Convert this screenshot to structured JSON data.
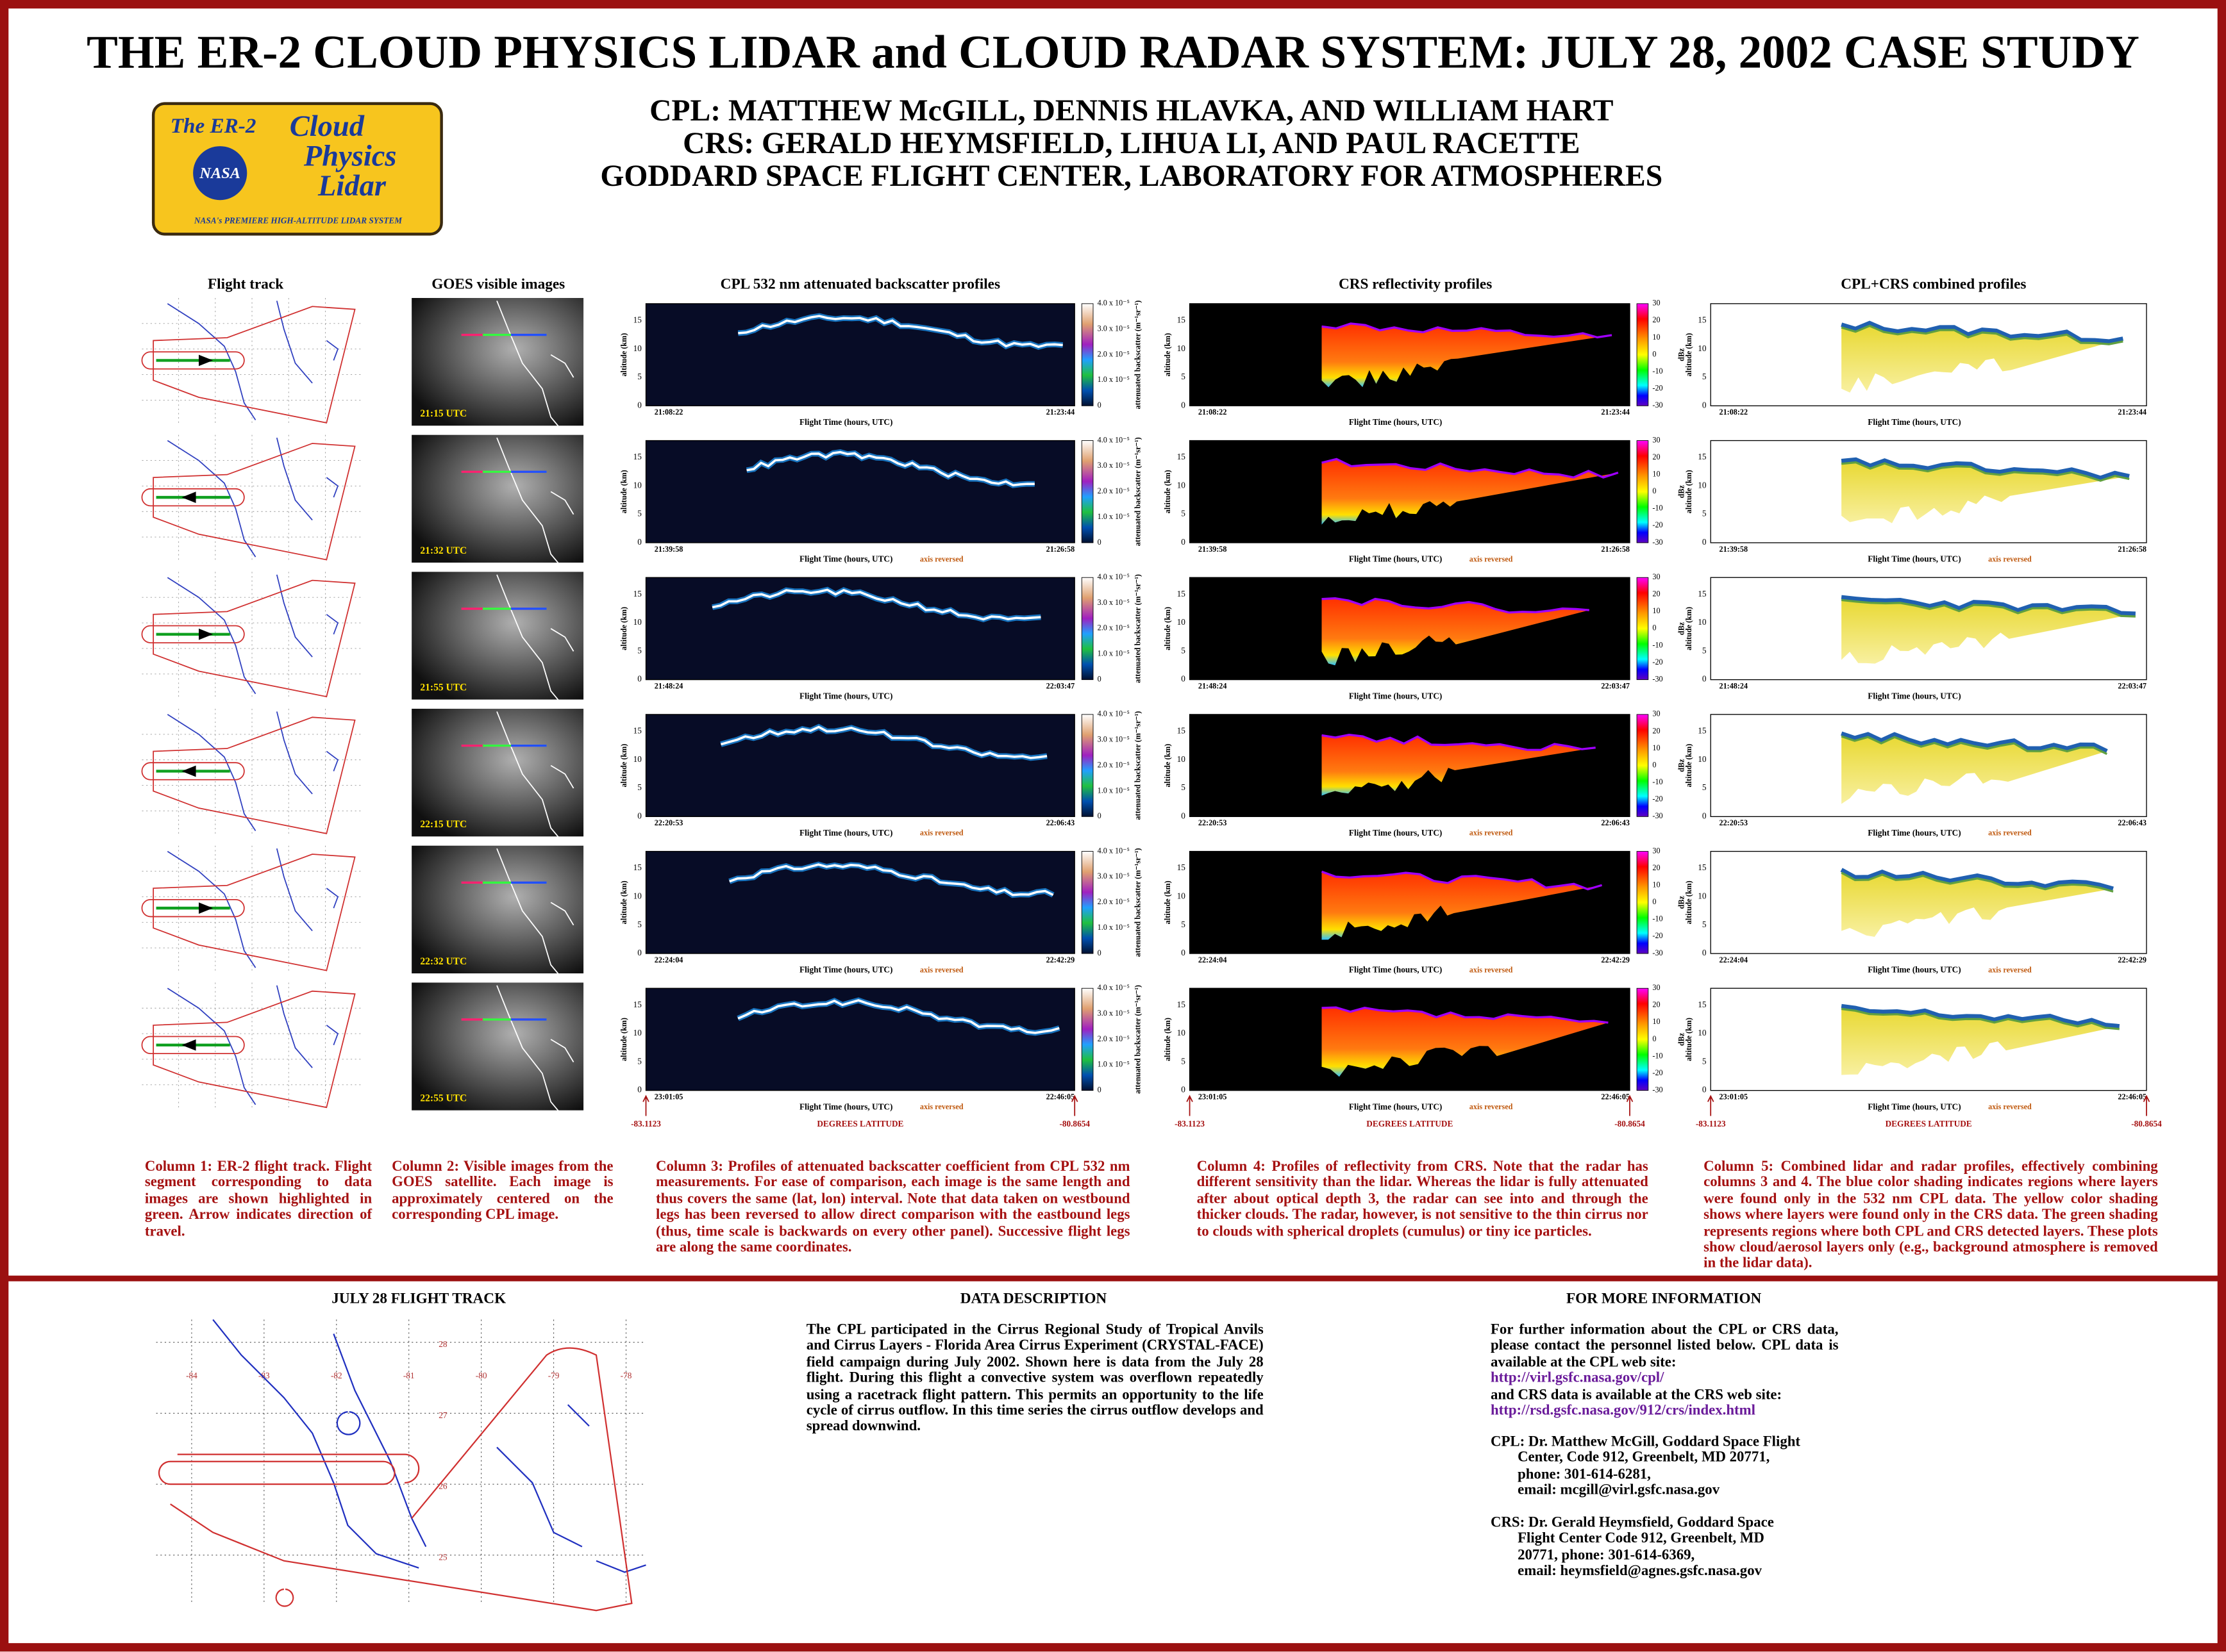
{
  "header": {
    "title": "THE ER-2 CLOUD PHYSICS LIDAR and CLOUD RADAR SYSTEM:  JULY 28, 2002 CASE STUDY",
    "authors": [
      "CPL:  MATTHEW McGILL, DENNIS HLAVKA, AND WILLIAM HART",
      "CRS:  GERALD HEYMSFIELD, LIHUA LI, AND PAUL RACETTE",
      "GODDARD SPACE FLIGHT CENTER, LABORATORY FOR ATMOSPHERES"
    ],
    "logo": {
      "prefix": "The ER-2",
      "agency": "NASA",
      "name": [
        "Cloud",
        "Physics",
        "Lidar"
      ],
      "tagline": "NASA's PREMIERE HIGH-ALTITUDE LIDAR SYSTEM"
    }
  },
  "columns": [
    "Flight track",
    "GOES visible images",
    "CPL 532 nm attenuated backscatter profiles",
    "CRS reflectivity profiles",
    "CPL+CRS combined profiles"
  ],
  "rows": [
    {
      "utc": "21:15 UTC",
      "start": "21:08:22",
      "end": "21:23:44"
    },
    {
      "utc": "21:32 UTC",
      "start": "21:39:58",
      "end": "21:26:58",
      "note": "axis reversed"
    },
    {
      "utc": "21:55 UTC",
      "start": "21:48:24",
      "end": "22:03:47"
    },
    {
      "utc": "22:15 UTC",
      "start": "22:20:53",
      "end": "22:06:43",
      "note": "axis reversed"
    },
    {
      "utc": "22:32 UTC",
      "start": "22:24:04",
      "end": "22:42:29",
      "note": "axis reversed"
    },
    {
      "utc": "22:55 UTC",
      "start": "23:01:05",
      "end": "22:46:05",
      "note": "axis reversed"
    }
  ],
  "axes": {
    "altitude": "altitude (km)",
    "flight_time": "Flight Time (hours, UTC)",
    "backscatter": "attenuated backscatter (m⁻¹sr⁻¹)",
    "dbz": "dBz",
    "altitude_ticks": [
      "15",
      "10",
      "5",
      "0"
    ],
    "cpl_colorbar_ticks": [
      "4.0 x 10⁻⁵",
      "3.0 x 10⁻⁵",
      "2.0 x 10⁻⁵",
      "1.0 x 10⁻⁵",
      "0"
    ],
    "crs_colorbar_ticks": [
      "30",
      "20",
      "10",
      "0",
      "-10",
      "-20",
      "-30"
    ]
  },
  "latitude": {
    "start": "-83.1123",
    "label": "DEGREES LATITUDE",
    "end": "-80.8654"
  },
  "captions": [
    "Column 1:  ER-2 flight track. Flight segment corresponding to data images are shown highlighted in green.  Arrow indicates direction of travel.",
    "Column 2:  Visible images from the GOES satellite.  Each image is approximately centered on the corresponding CPL image.",
    "Column 3:  Profiles of attenuated backscatter coefficient from CPL 532 nm measurements.  For ease of comparison, each image is the same length and thus covers the same (lat, lon) interval.  Note that data taken on westbound legs has been reversed to allow direct comparison with the eastbound legs (thus, time scale is backwards on every other panel).  Successive flight legs are along the same coordinates.",
    "Column 4:  Profiles of reflectivity from CRS.  Note that the radar has different sensitivity than the lidar.  Whereas the lidar is fully attenuated after about optical depth 3, the radar can see into and through the thicker clouds.  The radar, however, is not sensitive to the thin cirrus nor to clouds with spherical droplets (cumulus) or tiny ice particles.",
    "Column 5:  Combined lidar and radar profiles, effectively combining columns 3 and 4.  The blue color shading indicates regions where layers were found only in the 532 nm CPL data.  The yellow color shading shows where layers were found only in the CRS data.  The green shading represents regions where both CPL and CRS detected layers.  These plots show cloud/aerosol layers only (e.g., background atmosphere is removed in the lidar data)."
  ],
  "flight_track": {
    "title": "JULY 28 FLIGHT TRACK",
    "lon_labels": [
      "-84",
      "-83",
      "-82",
      "-81",
      "-80",
      "-79",
      "-78"
    ],
    "lat_labels": [
      "28",
      "27",
      "26",
      "25"
    ]
  },
  "data_description": {
    "title": "DATA DESCRIPTION",
    "text": "The CPL participated in the Cirrus Regional Study of Tropical Anvils and Cirrus Layers - Florida Area Cirrus Experiment (CRYSTAL-FACE) field campaign during July 2002.  Shown here is data from the July 28 flight.  During this flight a convective system was overflown repeatedly using a racetrack flight pattern.  This permits an opportunity to the life cycle of cirrus outflow.  In this time series the cirrus outflow develops and spread downwind."
  },
  "more_info": {
    "title": "FOR MORE INFORMATION",
    "intro": "For further information about the CPL or CRS data, please contact the personnel listed below.  CPL data is available at the CPL web site:",
    "cpl_url": "http://virl.gsfc.nasa.gov/cpl/",
    "crs_intro": "and CRS data is available at the CRS web site:",
    "crs_url": "http://rsd.gsfc.nasa.gov/912/crs/index.html",
    "cpl_contact": [
      "CPL:  Dr. Matthew McGill, Goddard Space Flight",
      "Center, Code 912, Greenbelt, MD  20771,",
      "phone: 301-614-6281,",
      "email:  mcgill@virl.gsfc.nasa.gov"
    ],
    "crs_contact": [
      "CRS:  Dr. Gerald Heymsfield, Goddard Space",
      "Flight Center Code 912, Greenbelt, MD",
      "20771, phone: 301-614-6369,",
      "email:  heymsfield@agnes.gsfc.nasa.gov"
    ]
  }
}
